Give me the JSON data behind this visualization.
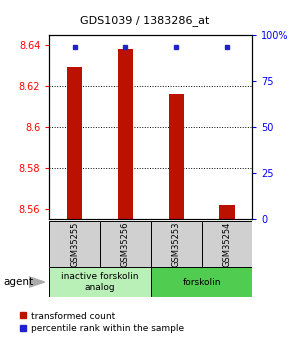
{
  "title": "GDS1039 / 1383286_at",
  "samples": [
    "GSM35255",
    "GSM35256",
    "GSM35253",
    "GSM35254"
  ],
  "red_values": [
    8.629,
    8.638,
    8.616,
    8.562
  ],
  "blue_values": [
    93,
    93,
    93,
    93
  ],
  "ylim_left": [
    8.555,
    8.645
  ],
  "ylim_right": [
    0,
    100
  ],
  "yticks_left": [
    8.56,
    8.58,
    8.6,
    8.62,
    8.64
  ],
  "yticks_right": [
    0,
    25,
    50,
    75,
    100
  ],
  "ytick_labels_right": [
    "0",
    "25",
    "50",
    "75",
    "100%"
  ],
  "agent_groups": [
    {
      "label": "inactive forskolin\nanalog",
      "cols": [
        0,
        1
      ],
      "color": "#b8f0b8"
    },
    {
      "label": "forskolin",
      "cols": [
        2,
        3
      ],
      "color": "#50cc50"
    }
  ],
  "legend_red": "transformed count",
  "legend_blue": "percentile rank within the sample",
  "agent_label": "agent",
  "bar_color": "#bb1100",
  "dot_color": "#2222cc",
  "background_color": "#ffffff",
  "plot_bg": "#ffffff",
  "bar_bottom": 8.555,
  "bar_width": 0.3,
  "grid_yticks": [
    8.58,
    8.6,
    8.62
  ]
}
